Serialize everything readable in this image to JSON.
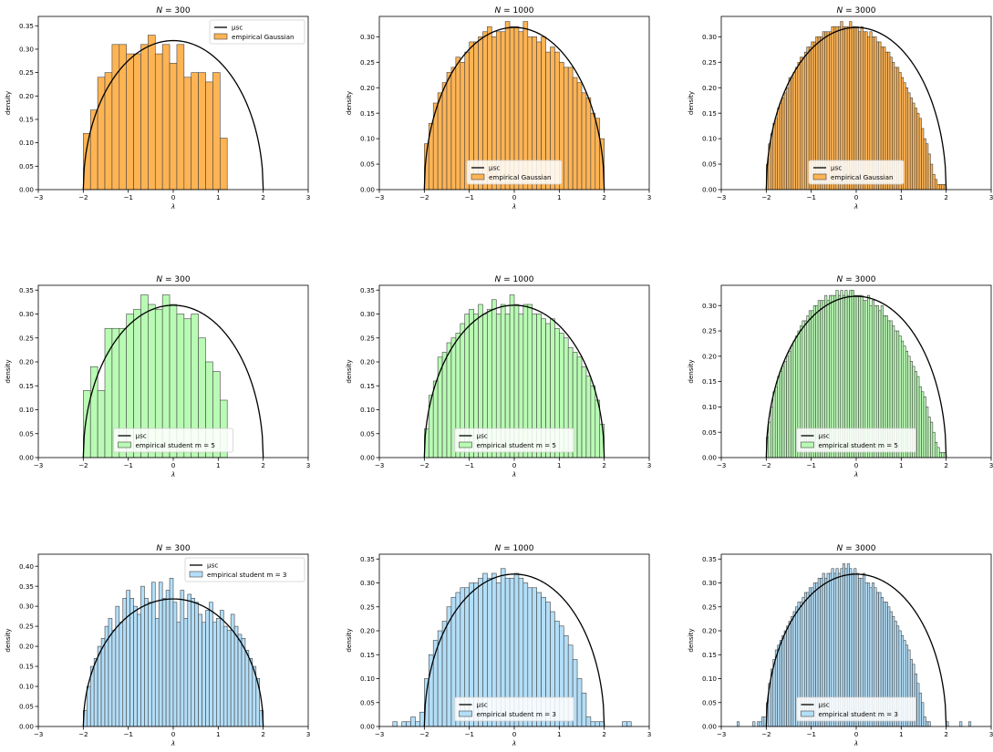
{
  "figure": {
    "ylabel": "density",
    "xlabel": "λ"
  },
  "chart_data": [
    {
      "type": "bar",
      "panel": "r0c0",
      "title_prefix": "N = ",
      "title_value": "300",
      "xlim": [
        -3,
        3
      ],
      "ylim": [
        0,
        0.37
      ],
      "xticks": [
        "−3",
        "−2",
        "−1",
        "0",
        "1",
        "2",
        "3"
      ],
      "yticks": [
        "0.00",
        "0.05",
        "0.10",
        "0.15",
        "0.20",
        "0.25",
        "0.30",
        "0.35"
      ],
      "xlabel": "λ",
      "ylabel": "density",
      "legend_position": "upper right",
      "legend": [
        "μsc",
        "empirical Gaussian"
      ],
      "bin_start": -2.0,
      "bin_width": 0.16,
      "values": [
        0.12,
        0.17,
        0.24,
        0.25,
        0.31,
        0.31,
        0.29,
        0.29,
        0.31,
        0.33,
        0.29,
        0.31,
        0.27,
        0.31,
        0.24,
        0.25,
        0.25,
        0.23,
        0.25,
        0.11
      ],
      "color": "#ffb454",
      "edge": "#444444",
      "curve": {
        "name": "μsc",
        "type": "semicircle",
        "radius": 2
      }
    },
    {
      "type": "bar",
      "panel": "r0c1",
      "title_prefix": "N = ",
      "title_value": "1000",
      "xlim": [
        -3,
        3
      ],
      "ylim": [
        0,
        0.34
      ],
      "xticks": [
        "−3",
        "−2",
        "−1",
        "0",
        "1",
        "2",
        "3"
      ],
      "yticks": [
        "0.00",
        "0.05",
        "0.10",
        "0.15",
        "0.20",
        "0.25",
        "0.30"
      ],
      "xlabel": "λ",
      "ylabel": "density",
      "legend_position": "lower center",
      "legend": [
        "μsc",
        "empirical Gaussian"
      ],
      "bin_start": -2.0,
      "bin_width": 0.1,
      "values": [
        0.09,
        0.13,
        0.17,
        0.19,
        0.21,
        0.23,
        0.24,
        0.26,
        0.25,
        0.27,
        0.29,
        0.29,
        0.3,
        0.31,
        0.32,
        0.3,
        0.31,
        0.31,
        0.33,
        0.32,
        0.32,
        0.31,
        0.33,
        0.3,
        0.3,
        0.29,
        0.3,
        0.27,
        0.28,
        0.27,
        0.25,
        0.24,
        0.24,
        0.22,
        0.21,
        0.19,
        0.18,
        0.15,
        0.14,
        0.1
      ],
      "color": "#ffb454",
      "edge": "#444444",
      "curve": {
        "name": "μsc",
        "type": "semicircle",
        "radius": 2
      }
    },
    {
      "type": "bar",
      "panel": "r0c2",
      "title_prefix": "N = ",
      "title_value": "3000",
      "xlim": [
        -3,
        3
      ],
      "ylim": [
        0,
        0.34
      ],
      "xticks": [
        "−3",
        "−2",
        "−1",
        "0",
        "1",
        "2",
        "3"
      ],
      "yticks": [
        "0.00",
        "0.05",
        "0.10",
        "0.15",
        "0.20",
        "0.25",
        "0.30"
      ],
      "xlabel": "λ",
      "ylabel": "density",
      "legend_position": "lower center",
      "legend": [
        "μsc",
        "empirical Gaussian"
      ],
      "bin_start": -2.0,
      "bin_width": 0.05,
      "values": [
        0.05,
        0.09,
        0.11,
        0.13,
        0.14,
        0.16,
        0.17,
        0.18,
        0.19,
        0.2,
        0.22,
        0.22,
        0.23,
        0.24,
        0.25,
        0.26,
        0.26,
        0.27,
        0.28,
        0.28,
        0.29,
        0.29,
        0.3,
        0.3,
        0.3,
        0.31,
        0.31,
        0.31,
        0.31,
        0.32,
        0.32,
        0.32,
        0.32,
        0.33,
        0.32,
        0.32,
        0.32,
        0.33,
        0.32,
        0.32,
        0.32,
        0.31,
        0.32,
        0.31,
        0.31,
        0.3,
        0.31,
        0.3,
        0.3,
        0.29,
        0.29,
        0.28,
        0.28,
        0.27,
        0.27,
        0.26,
        0.25,
        0.24,
        0.24,
        0.23,
        0.22,
        0.21,
        0.2,
        0.19,
        0.18,
        0.17,
        0.16,
        0.15,
        0.14,
        0.12,
        0.1,
        0.09,
        0.07,
        0.05,
        0.03,
        0.02,
        0.01,
        0.01,
        0.01,
        0.01
      ],
      "color": "#ffb454",
      "edge": "#444444",
      "curve": {
        "name": "μsc",
        "type": "semicircle",
        "radius": 2
      }
    },
    {
      "type": "bar",
      "panel": "r1c0",
      "title_prefix": "N = ",
      "title_value": "300",
      "xlim": [
        -3,
        3
      ],
      "ylim": [
        0,
        0.36
      ],
      "xticks": [
        "−3",
        "−2",
        "−1",
        "0",
        "1",
        "2",
        "3"
      ],
      "yticks": [
        "0.00",
        "0.05",
        "0.10",
        "0.15",
        "0.20",
        "0.25",
        "0.30",
        "0.35"
      ],
      "xlabel": "λ",
      "ylabel": "density",
      "legend_position": "lower center",
      "legend": [
        "μsc",
        "empirical student m = 5"
      ],
      "legend_math": "m = 5",
      "bin_start": -2.0,
      "bin_width": 0.16,
      "values": [
        0.14,
        0.19,
        0.14,
        0.27,
        0.27,
        0.27,
        0.3,
        0.31,
        0.34,
        0.32,
        0.31,
        0.34,
        0.32,
        0.3,
        0.29,
        0.3,
        0.25,
        0.2,
        0.18,
        0.12
      ],
      "color": "#b9fbb4",
      "edge": "#444444",
      "curve": {
        "name": "μsc",
        "type": "semicircle",
        "radius": 2
      }
    },
    {
      "type": "bar",
      "panel": "r1c1",
      "title_prefix": "N = ",
      "title_value": "1000",
      "xlim": [
        -3,
        3
      ],
      "ylim": [
        0,
        0.36
      ],
      "xticks": [
        "−3",
        "−2",
        "−1",
        "0",
        "1",
        "2",
        "3"
      ],
      "yticks": [
        "0.00",
        "0.05",
        "0.10",
        "0.15",
        "0.20",
        "0.25",
        "0.30",
        "0.35"
      ],
      "xlabel": "λ",
      "ylabel": "density",
      "legend_position": "lower center",
      "legend": [
        "μsc",
        "empirical student m = 5"
      ],
      "legend_math": "m = 5",
      "bin_start": -2.0,
      "bin_width": 0.1,
      "values": [
        0.06,
        0.13,
        0.16,
        0.21,
        0.22,
        0.24,
        0.25,
        0.26,
        0.28,
        0.3,
        0.31,
        0.3,
        0.32,
        0.3,
        0.31,
        0.33,
        0.3,
        0.32,
        0.3,
        0.34,
        0.32,
        0.3,
        0.32,
        0.32,
        0.3,
        0.3,
        0.29,
        0.28,
        0.29,
        0.27,
        0.26,
        0.25,
        0.23,
        0.22,
        0.21,
        0.19,
        0.17,
        0.15,
        0.12,
        0.07
      ],
      "color": "#b9fbb4",
      "edge": "#444444",
      "curve": {
        "name": "μsc",
        "type": "semicircle",
        "radius": 2
      }
    },
    {
      "type": "bar",
      "panel": "r1c2",
      "title_prefix": "N = ",
      "title_value": "3000",
      "xlim": [
        -3,
        3
      ],
      "ylim": [
        0,
        0.34
      ],
      "xticks": [
        "−3",
        "−2",
        "−1",
        "0",
        "1",
        "2",
        "3"
      ],
      "yticks": [
        "0.00",
        "0.05",
        "0.10",
        "0.15",
        "0.20",
        "0.25",
        "0.30"
      ],
      "xlabel": "λ",
      "ylabel": "density",
      "legend_position": "lower center",
      "legend": [
        "μsc",
        "empirical student m = 5"
      ],
      "legend_math": "m = 5",
      "bin_start": -2.0,
      "bin_width": 0.05,
      "values": [
        0.04,
        0.07,
        0.1,
        0.13,
        0.14,
        0.16,
        0.17,
        0.18,
        0.19,
        0.2,
        0.21,
        0.22,
        0.23,
        0.24,
        0.25,
        0.26,
        0.27,
        0.27,
        0.28,
        0.29,
        0.29,
        0.3,
        0.3,
        0.31,
        0.31,
        0.31,
        0.32,
        0.31,
        0.32,
        0.32,
        0.32,
        0.33,
        0.32,
        0.33,
        0.32,
        0.33,
        0.32,
        0.33,
        0.33,
        0.32,
        0.32,
        0.32,
        0.32,
        0.31,
        0.31,
        0.32,
        0.3,
        0.31,
        0.3,
        0.3,
        0.29,
        0.3,
        0.28,
        0.28,
        0.27,
        0.27,
        0.26,
        0.25,
        0.25,
        0.24,
        0.23,
        0.22,
        0.21,
        0.2,
        0.19,
        0.18,
        0.17,
        0.16,
        0.14,
        0.13,
        0.12,
        0.1,
        0.08,
        0.07,
        0.05,
        0.03,
        0.02,
        0.01,
        0.01,
        0.01
      ],
      "color": "#b9fbb4",
      "edge": "#444444",
      "curve": {
        "name": "μsc",
        "type": "semicircle",
        "radius": 2
      }
    },
    {
      "type": "bar",
      "panel": "r2c0",
      "title_prefix": "N = ",
      "title_value": "300",
      "xlim": [
        -3,
        3
      ],
      "ylim": [
        0,
        0.43
      ],
      "xticks": [
        "−3",
        "−2",
        "−1",
        "0",
        "1",
        "2",
        "3"
      ],
      "yticks": [
        "0.00",
        "0.05",
        "0.10",
        "0.15",
        "0.20",
        "0.25",
        "0.30",
        "0.35",
        "0.40"
      ],
      "xlabel": "λ",
      "ylabel": "density",
      "legend_position": "upper right",
      "legend": [
        "μsc",
        "empirical student m = 3"
      ],
      "legend_math": "m = 3",
      "bin_start": -2.0,
      "bin_width": 0.08,
      "values": [
        0.04,
        0.1,
        0.15,
        0.17,
        0.2,
        0.22,
        0.25,
        0.27,
        0.24,
        0.3,
        0.26,
        0.32,
        0.34,
        0.32,
        0.3,
        0.28,
        0.35,
        0.32,
        0.31,
        0.36,
        0.27,
        0.36,
        0.32,
        0.34,
        0.37,
        0.31,
        0.26,
        0.34,
        0.27,
        0.33,
        0.32,
        0.31,
        0.28,
        0.26,
        0.29,
        0.31,
        0.26,
        0.27,
        0.29,
        0.25,
        0.24,
        0.28,
        0.25,
        0.23,
        0.22,
        0.19,
        0.17,
        0.15,
        0.12,
        0.04
      ],
      "color": "#b3def8",
      "edge": "#444444",
      "curve": {
        "name": "μsc",
        "type": "semicircle",
        "radius": 2
      }
    },
    {
      "type": "bar",
      "panel": "r2c1",
      "title_prefix": "N = ",
      "title_value": "1000",
      "xlim": [
        -3,
        3
      ],
      "ylim": [
        0,
        0.36
      ],
      "xticks": [
        "−3",
        "−2",
        "−1",
        "0",
        "1",
        "2",
        "3"
      ],
      "yticks": [
        "0.00",
        "0.05",
        "0.10",
        "0.15",
        "0.20",
        "0.25",
        "0.30",
        "0.35"
      ],
      "xlabel": "λ",
      "ylabel": "density",
      "legend_position": "lower center",
      "legend": [
        "μsc",
        "empirical student m = 3"
      ],
      "legend_math": "m = 3",
      "bin_start": -2.7,
      "bin_width": 0.1,
      "values": [
        0.01,
        0.0,
        0.01,
        0.01,
        0.02,
        0.01,
        0.03,
        0.1,
        0.15,
        0.18,
        0.2,
        0.22,
        0.25,
        0.27,
        0.28,
        0.29,
        0.29,
        0.3,
        0.3,
        0.31,
        0.32,
        0.31,
        0.32,
        0.3,
        0.33,
        0.31,
        0.31,
        0.32,
        0.31,
        0.3,
        0.29,
        0.29,
        0.28,
        0.27,
        0.26,
        0.24,
        0.22,
        0.21,
        0.19,
        0.17,
        0.14,
        0.1,
        0.07,
        0.02,
        0.01,
        0.01,
        0.01,
        0.0,
        0.0,
        0.0,
        0.0,
        0.01,
        0.01
      ],
      "color": "#b3def8",
      "edge": "#444444",
      "curve": {
        "name": "μsc",
        "type": "semicircle",
        "radius": 2
      }
    },
    {
      "type": "bar",
      "panel": "r2c2",
      "title_prefix": "N = ",
      "title_value": "3000",
      "xlim": [
        -3,
        3
      ],
      "ylim": [
        0,
        0.36
      ],
      "xticks": [
        "−3",
        "−2",
        "−1",
        "0",
        "1",
        "2",
        "3"
      ],
      "yticks": [
        "0.00",
        "0.05",
        "0.10",
        "0.15",
        "0.20",
        "0.25",
        "0.30",
        "0.35"
      ],
      "xlabel": "λ",
      "ylabel": "density",
      "legend_position": "lower center",
      "legend": [
        "μsc",
        "empirical student m = 3"
      ],
      "legend_math": "m = 3",
      "bin_start": -2.7,
      "bin_width": 0.05,
      "values": [
        0.0,
        0.01,
        0.0,
        0.0,
        0.0,
        0.0,
        0.0,
        0.0,
        0.01,
        0.0,
        0.01,
        0.01,
        0.02,
        0.02,
        0.05,
        0.09,
        0.12,
        0.14,
        0.16,
        0.17,
        0.18,
        0.19,
        0.2,
        0.21,
        0.22,
        0.23,
        0.24,
        0.25,
        0.26,
        0.26,
        0.27,
        0.28,
        0.28,
        0.29,
        0.29,
        0.3,
        0.3,
        0.31,
        0.31,
        0.32,
        0.31,
        0.32,
        0.32,
        0.33,
        0.32,
        0.33,
        0.32,
        0.33,
        0.34,
        0.33,
        0.34,
        0.33,
        0.32,
        0.33,
        0.32,
        0.31,
        0.31,
        0.32,
        0.3,
        0.3,
        0.29,
        0.3,
        0.29,
        0.28,
        0.28,
        0.27,
        0.26,
        0.26,
        0.25,
        0.24,
        0.23,
        0.22,
        0.21,
        0.2,
        0.19,
        0.18,
        0.17,
        0.16,
        0.14,
        0.13,
        0.11,
        0.09,
        0.07,
        0.05,
        0.02,
        0.01,
        0.01,
        0.0,
        0.0,
        0.0,
        0.0,
        0.0,
        0.0,
        0.0,
        0.01,
        0.0,
        0.0,
        0.0,
        0.0,
        0.0,
        0.01,
        0.0,
        0.0,
        0.0,
        0.01,
        0.0,
        0.0,
        0.0
      ],
      "color": "#b3def8",
      "edge": "#444444",
      "curve": {
        "name": "μsc",
        "type": "semicircle",
        "radius": 2
      }
    }
  ]
}
